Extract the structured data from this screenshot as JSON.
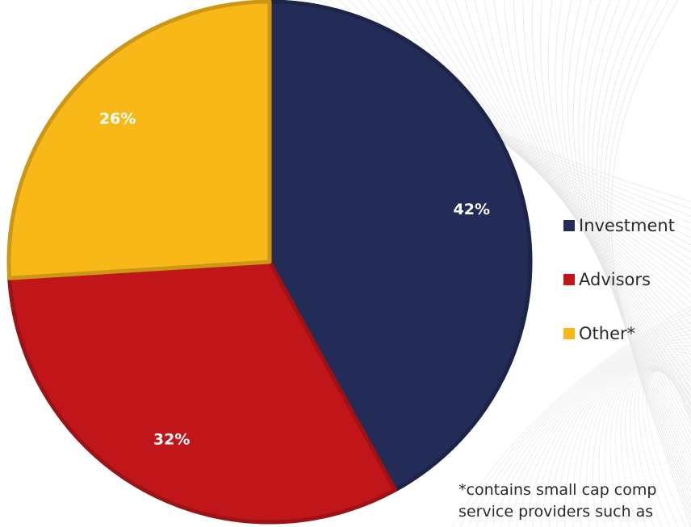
{
  "chart_data": {
    "type": "pie",
    "slices": [
      {
        "name": "Investment",
        "value": 42,
        "label": "42%",
        "color": "#222c57"
      },
      {
        "name": "Advisors",
        "value": 32,
        "label": "32%",
        "color": "#c0161a"
      },
      {
        "name": "Other*",
        "value": 26,
        "label": "26%",
        "color": "#f7b818"
      }
    ],
    "start_angle": "12 o'clock",
    "direction": "clockwise",
    "legend_position": "right",
    "footnote_lines": [
      "*contains small cap comp",
      "service providers such as"
    ]
  }
}
